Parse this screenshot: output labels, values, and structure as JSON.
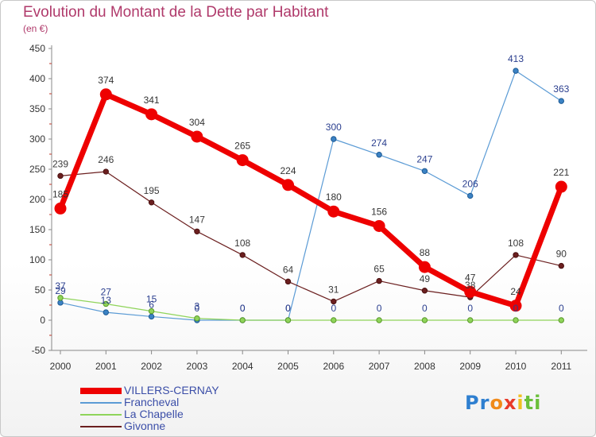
{
  "title": "Evolution du Montant de la Dette par Habitant",
  "unit": "(en €)",
  "logo": {
    "letters": [
      {
        "ch": "P",
        "color": "#2e7fd0"
      },
      {
        "ch": "r",
        "color": "#2e7fd0"
      },
      {
        "ch": "o",
        "color": "#f08a1a"
      },
      {
        "ch": "x",
        "color": "#e83a2a"
      },
      {
        "ch": "i",
        "color": "#f0c020"
      },
      {
        "ch": "t",
        "color": "#6abf3a"
      },
      {
        "ch": "i",
        "color": "#6abf3a"
      }
    ]
  },
  "chart_data": {
    "type": "line",
    "title": "Evolution du Montant de la Dette par Habitant",
    "ylabel": "(en €)",
    "xlabel": "",
    "x": [
      "2000",
      "2001",
      "2002",
      "2003",
      "2004",
      "2005",
      "2006",
      "2007",
      "2008",
      "2009",
      "2010",
      "2011"
    ],
    "ylim": [
      -50,
      450
    ],
    "yticks": [
      -50,
      0,
      50,
      100,
      150,
      200,
      250,
      300,
      350,
      400,
      450
    ],
    "grid": false,
    "legend": "bottom-left",
    "series": [
      {
        "name": "Francheval",
        "color": "#5b9bd5",
        "values": [
          29,
          13,
          6,
          0,
          0,
          0,
          300,
          274,
          247,
          206,
          413,
          363
        ],
        "labels": [
          "29",
          "13",
          "6",
          "0",
          "0",
          "0",
          "300",
          "274",
          "247",
          "206",
          "413",
          "363"
        ]
      },
      {
        "name": "La Chapelle",
        "color": "#8fd45a",
        "values": [
          37,
          27,
          15,
          3,
          0,
          0,
          0,
          0,
          0,
          0,
          0,
          0
        ],
        "labels": [
          "37",
          "27",
          "15",
          "3",
          "0",
          "0",
          "0",
          "0",
          "0",
          "0",
          "0",
          "0"
        ]
      },
      {
        "name": "Givonne",
        "color": "#6b1f1f",
        "values": [
          239,
          246,
          195,
          147,
          108,
          64,
          31,
          65,
          49,
          38,
          108,
          90
        ],
        "labels": [
          "239",
          "246",
          "195",
          "147",
          "108",
          "64",
          "31",
          "65",
          "49",
          "38",
          "108",
          "90"
        ]
      },
      {
        "name": "VILLERS-CERNAY",
        "color": "#ee0000",
        "values": [
          185,
          374,
          341,
          304,
          265,
          224,
          180,
          156,
          88,
          47,
          24,
          221
        ],
        "labels": [
          "185",
          "374",
          "341",
          "304",
          "265",
          "224",
          "180",
          "156",
          "88",
          "47",
          "24",
          "221"
        ]
      }
    ],
    "legend_order": [
      "VILLERS-CERNAY",
      "Francheval",
      "La Chapelle",
      "Givonne"
    ]
  }
}
